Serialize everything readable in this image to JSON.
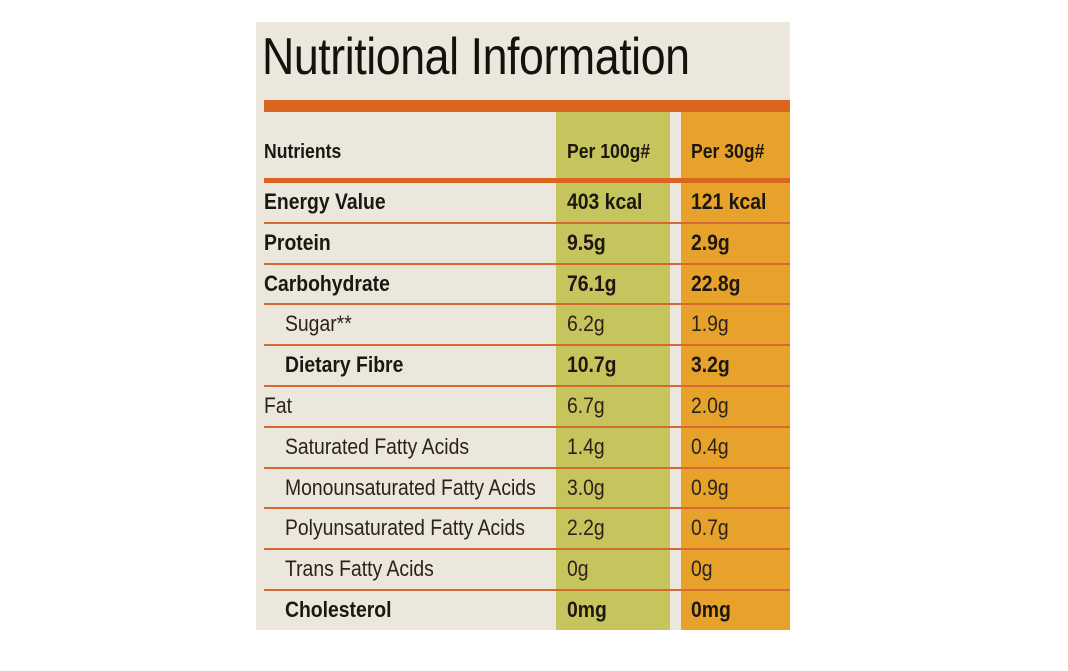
{
  "title": "Nutritional Information",
  "header": {
    "nutrient": "Nutrients",
    "col1": "Per 100g#",
    "col2": "Per 30g#"
  },
  "rows": [
    {
      "name": "Energy Value",
      "v1": "403 kcal",
      "v2": "121 kcal",
      "bold": true,
      "indent": false
    },
    {
      "name": "Protein",
      "v1": "9.5g",
      "v2": "2.9g",
      "bold": true,
      "indent": false
    },
    {
      "name": "Carbohydrate",
      "v1": "76.1g",
      "v2": "22.8g",
      "bold": true,
      "indent": false
    },
    {
      "name": "Sugar**",
      "v1": "6.2g",
      "v2": "1.9g",
      "bold": false,
      "indent": true
    },
    {
      "name": "Dietary Fibre",
      "v1": "10.7g",
      "v2": "3.2g",
      "bold": true,
      "indent": true
    },
    {
      "name": "Fat",
      "v1": "6.7g",
      "v2": "2.0g",
      "bold": false,
      "indent": false
    },
    {
      "name": "Saturated Fatty Acids",
      "v1": "1.4g",
      "v2": "0.4g",
      "bold": false,
      "indent": true
    },
    {
      "name": "Monounsaturated Fatty Acids",
      "v1": "3.0g",
      "v2": "0.9g",
      "bold": false,
      "indent": true
    },
    {
      "name": "Polyunsaturated Fatty Acids",
      "v1": "2.2g",
      "v2": "0.7g",
      "bold": false,
      "indent": true
    },
    {
      "name": "Trans Fatty Acids",
      "v1": "0g",
      "v2": "0g",
      "bold": false,
      "indent": true
    },
    {
      "name": "Cholesterol",
      "v1": "0mg",
      "v2": "0mg",
      "bold": true,
      "indent": true
    }
  ],
  "colors": {
    "background": "#ece7dc",
    "per100_column": "#c6c45c",
    "per30_column": "#e7a22c",
    "rule": "#d9651f",
    "text": "#1d1712"
  }
}
